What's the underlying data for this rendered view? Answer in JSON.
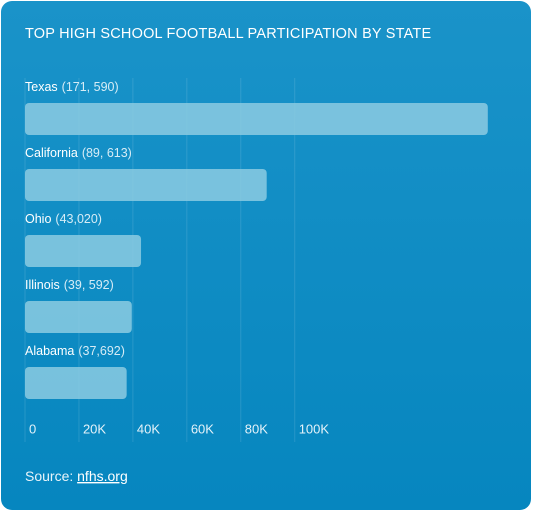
{
  "chart_data": {
    "type": "hbar",
    "title": "TOP HIGH SCHOOL FOOTBALL PARTICIPATION BY STATE",
    "categories": [
      "Texas",
      "California",
      "Ohio",
      "Illinois",
      "Alabama"
    ],
    "values": [
      171590,
      89613,
      43020,
      39592,
      37692
    ],
    "value_labels": [
      "(171, 590)",
      "(89, 613)",
      "(43,020)",
      "(39, 592)",
      "(37,692)"
    ],
    "color": "#8ccbe2",
    "xlim": [
      0,
      175000
    ],
    "xticks": [
      0,
      {
        "value": 20000,
        "label": "20K"
      },
      {
        "value": 40000,
        "label": "40K"
      },
      {
        "value": 60000,
        "label": "60K"
      },
      {
        "value": 80000,
        "label": "80K"
      },
      {
        "value": 100000,
        "label": "100K"
      }
    ],
    "grid": true,
    "source_label": "Source:",
    "source_link": "nfhs.org"
  }
}
